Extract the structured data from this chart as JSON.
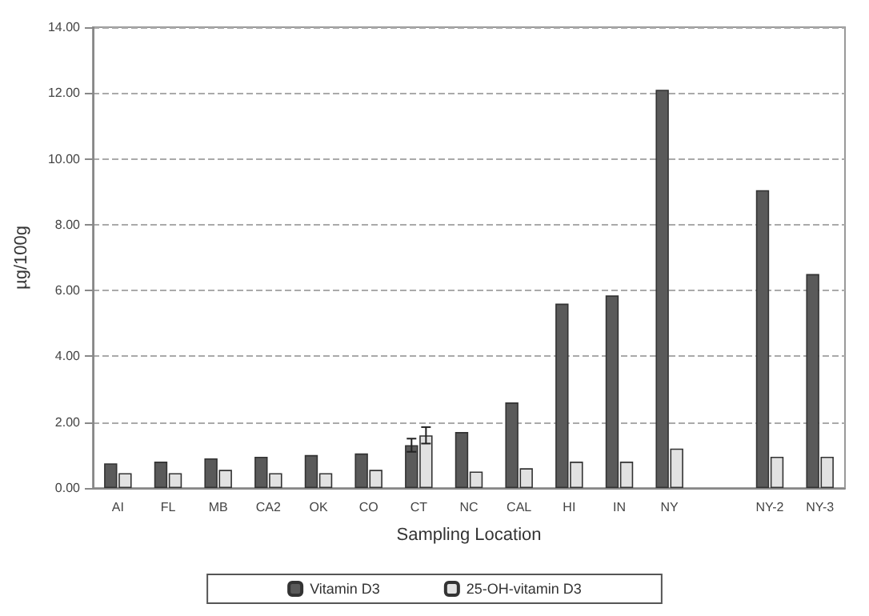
{
  "chart_data": {
    "type": "bar",
    "xlabel": "Sampling Location",
    "ylabel": "µg/100g",
    "categories": [
      "AI",
      "FL",
      "MB",
      "CA2",
      "OK",
      "CO",
      "CT",
      "NC",
      "CAL",
      "HI",
      "IN",
      "NY",
      null,
      "NY-2",
      "NY-3"
    ],
    "series": [
      {
        "name": "Vitamin D3",
        "color": "#5a5a5a",
        "values": [
          0.75,
          0.8,
          0.9,
          0.95,
          1.0,
          1.05,
          1.3,
          1.7,
          2.6,
          5.6,
          5.85,
          12.1,
          null,
          9.05,
          6.5
        ],
        "errors": [
          null,
          null,
          null,
          null,
          null,
          null,
          0.2,
          null,
          null,
          null,
          null,
          null,
          null,
          null,
          null
        ]
      },
      {
        "name": "25-OH-vitamin D3",
        "color": "#e2e2e2",
        "values": [
          0.45,
          0.45,
          0.55,
          0.45,
          0.45,
          0.55,
          1.6,
          0.5,
          0.6,
          0.8,
          0.8,
          1.2,
          null,
          0.95,
          0.95
        ],
        "errors": [
          null,
          null,
          null,
          null,
          null,
          null,
          0.25,
          null,
          null,
          null,
          null,
          null,
          null,
          null,
          null
        ]
      }
    ],
    "ylim": [
      0,
      14
    ],
    "yticks": [
      {
        "value": 0,
        "label": "0.00"
      },
      {
        "value": 2,
        "label": "2.00"
      },
      {
        "value": 4,
        "label": "4.00"
      },
      {
        "value": 6,
        "label": "6.00"
      },
      {
        "value": 8,
        "label": "8.00"
      },
      {
        "value": 10,
        "label": "10.00"
      },
      {
        "value": 12,
        "label": "12.00"
      },
      {
        "value": 14,
        "label": "14.00"
      }
    ],
    "grid": "y",
    "legend": "bottom"
  }
}
